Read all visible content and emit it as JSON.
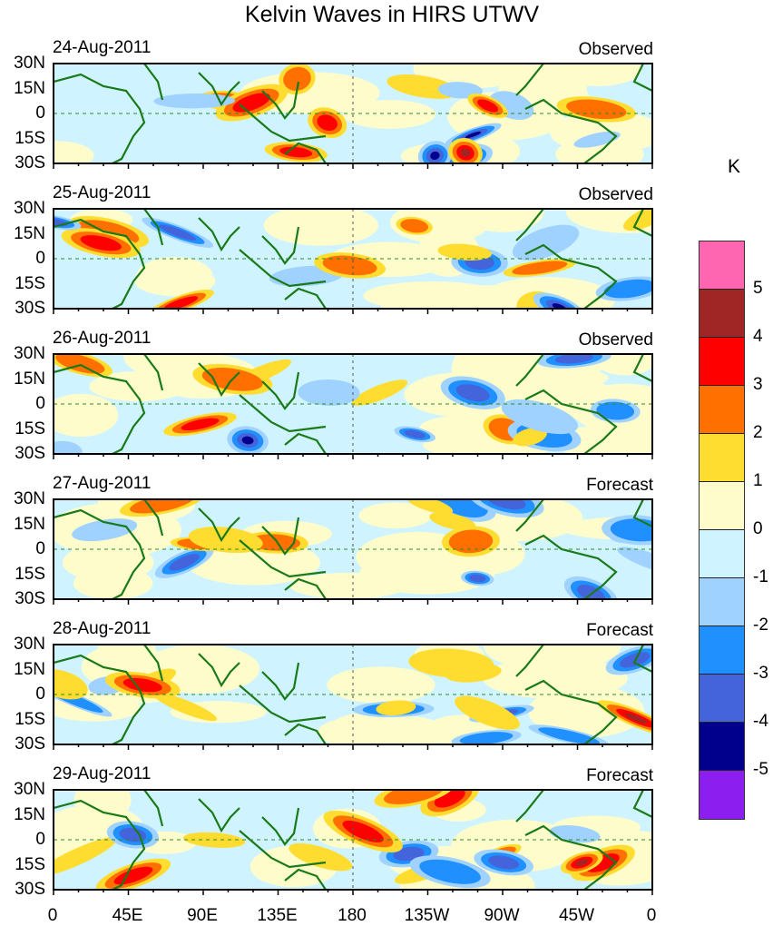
{
  "title": "Kelvin Waves in HIRS UTWV",
  "unit": "K",
  "panels": [
    {
      "date": "24-Aug-2011",
      "kind": "Observed"
    },
    {
      "date": "25-Aug-2011",
      "kind": "Observed"
    },
    {
      "date": "26-Aug-2011",
      "kind": "Observed"
    },
    {
      "date": "27-Aug-2011",
      "kind": "Forecast"
    },
    {
      "date": "28-Aug-2011",
      "kind": "Forecast"
    },
    {
      "date": "29-Aug-2011",
      "kind": "Forecast"
    }
  ],
  "y_ticks": [
    "30N",
    "15N",
    "0",
    "15S",
    "30S"
  ],
  "x_ticks": [
    "0",
    "45E",
    "90E",
    "135E",
    "180",
    "135W",
    "90W",
    "45W",
    "0"
  ],
  "colorbar": {
    "labels": [
      "5",
      "4",
      "3",
      "2",
      "1",
      "0",
      "-1",
      "-2",
      "-3",
      "-4",
      "-5"
    ],
    "colors": [
      "#ff66b2",
      "#a02525",
      "#ff0000",
      "#ff7000",
      "#ffdc30",
      "#fffccc",
      "#d0f4ff",
      "#a0d2ff",
      "#2090ff",
      "#4464dc",
      "#00008c",
      "#8c1ef0"
    ]
  },
  "coastline_color": "#1a7a1a"
}
